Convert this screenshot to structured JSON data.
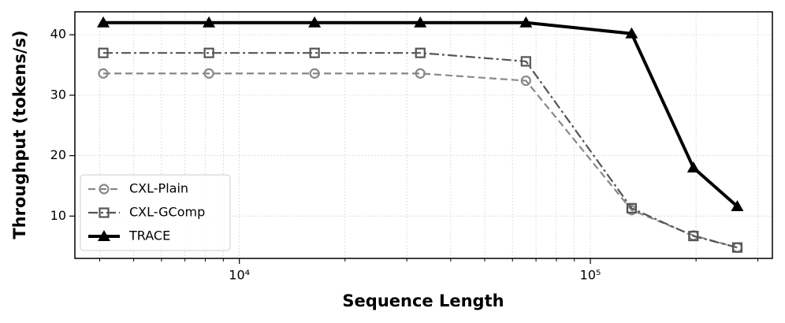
{
  "chart_data": {
    "type": "line",
    "xlabel": "Sequence Length",
    "ylabel": "Throughput (tokens/s)",
    "x": [
      4096,
      8192,
      16384,
      32768,
      65536,
      131072,
      196608,
      262144
    ],
    "xscale": "log",
    "xlim": [
      3400,
      330000
    ],
    "xticks": [
      {
        "value": 10000,
        "label": "10⁴"
      },
      {
        "value": 100000,
        "label": "10⁵"
      }
    ],
    "xminorticks": [
      4000,
      5000,
      6000,
      7000,
      8000,
      9000,
      20000,
      30000,
      40000,
      50000,
      60000,
      70000,
      80000,
      90000,
      200000,
      300000
    ],
    "ylim": [
      3,
      43.8
    ],
    "yticks": [
      10,
      20,
      30,
      40
    ],
    "grid": true,
    "legend": "lower left",
    "series": [
      {
        "name": "CXL-Plain",
        "color": "#888888",
        "marker": "circle",
        "dash": "dashed",
        "values": [
          33.6,
          33.6,
          33.6,
          33.6,
          32.4,
          11,
          6.8,
          4.8
        ]
      },
      {
        "name": "CXL-GComp",
        "color": "#555555",
        "marker": "square",
        "dash": "dashdot",
        "values": [
          37,
          37,
          37,
          37,
          35.6,
          11.3,
          6.7,
          4.8
        ]
      },
      {
        "name": "TRACE",
        "color": "#000000",
        "marker": "triangle",
        "dash": "solid",
        "values": [
          42,
          42,
          42,
          42,
          42,
          40.2,
          18,
          11.6
        ]
      }
    ]
  }
}
